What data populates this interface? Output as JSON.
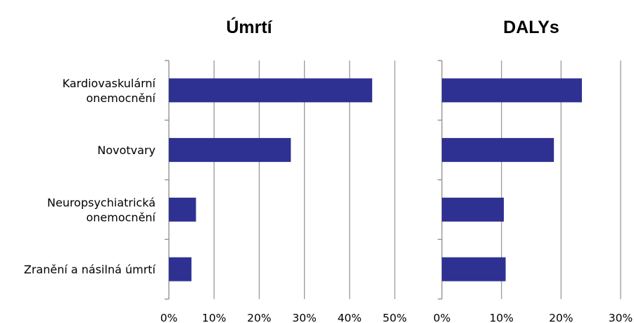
{
  "chart_data": [
    {
      "type": "bar",
      "orientation": "horizontal",
      "title": "Úmrtí",
      "categories": [
        [
          "Kardiovaskulární",
          "onemocnění"
        ],
        [
          "Novotvary"
        ],
        [
          "Neuropsychiatrická",
          "onemocnění"
        ],
        [
          "Zranění a násilná úmrtí"
        ]
      ],
      "values": [
        45,
        27,
        6,
        5
      ],
      "xlim": [
        0,
        50
      ],
      "x_ticks": [
        0,
        10,
        20,
        30,
        40,
        50
      ],
      "x_tick_labels": [
        "0%",
        "10%",
        "20%",
        "30%",
        "40%",
        "50%"
      ],
      "grid": "vertical",
      "bar_color": "#2e3192"
    },
    {
      "type": "bar",
      "orientation": "horizontal",
      "title": "DALYs",
      "categories": [
        [
          "Kardiovaskulární",
          "onemocnění"
        ],
        [
          "Novotvary"
        ],
        [
          "Neuropsychiatrická",
          "onemocnění"
        ],
        [
          "Zranění a násilná úmrtí"
        ]
      ],
      "values": [
        23.5,
        18.8,
        10.4,
        10.7
      ],
      "xlim": [
        0,
        30
      ],
      "x_ticks": [
        0,
        10,
        20,
        30
      ],
      "x_tick_labels": [
        "0%",
        "10%",
        "20%",
        "30%"
      ],
      "grid": "vertical",
      "bar_color": "#2e3192"
    }
  ]
}
